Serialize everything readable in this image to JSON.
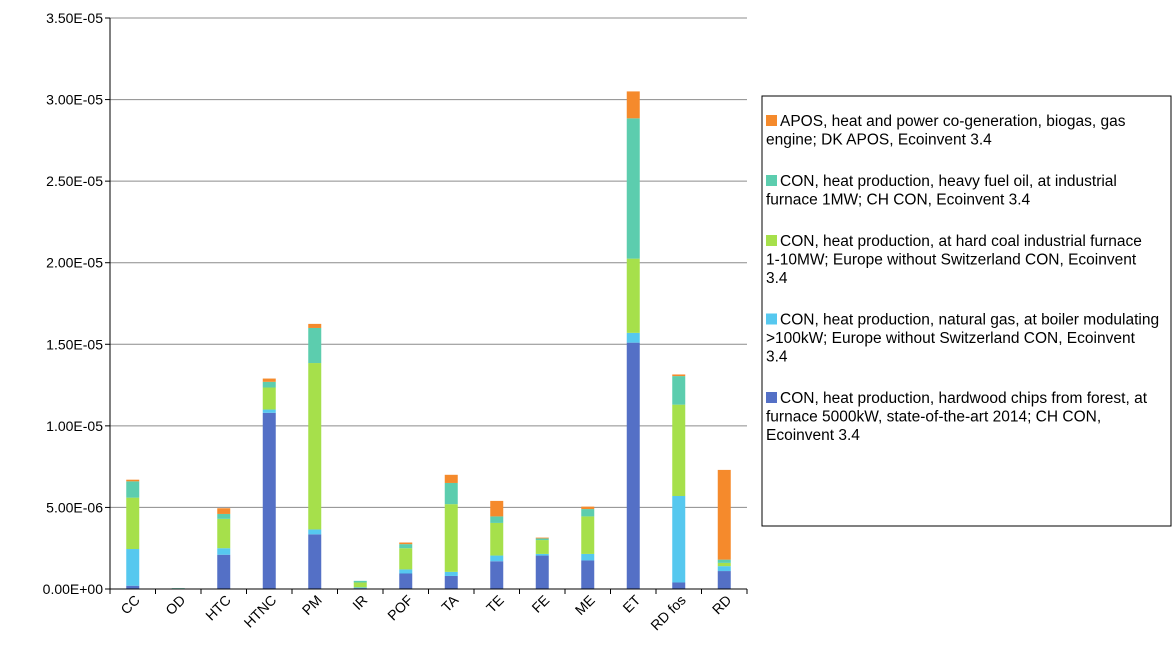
{
  "chart_data": {
    "type": "bar",
    "stacked": true,
    "categories": [
      "CC",
      "OD",
      "HTC",
      "HTNC",
      "PM",
      "IR",
      "POF",
      "TA",
      "TE",
      "FE",
      "ME",
      "ET",
      "RD fos",
      "RD"
    ],
    "ylim": [
      0,
      3.5e-05
    ],
    "yticks": [
      0,
      5e-06,
      1e-05,
      1.5e-05,
      2e-05,
      2.5e-05,
      3e-05,
      3.5e-05
    ],
    "ytick_labels": [
      "0.00E+00",
      "5.00E-06",
      "1.00E-05",
      "1.50E-05",
      "2.00E-05",
      "2.50E-05",
      "3.00E-05",
      "3.50E-05"
    ],
    "grid": true,
    "legend_position": "right",
    "series": [
      {
        "name": "CON, heat production, hardwood chips from forest, at furnace 5000kW, state-of-the-art 2014; CH CON, Ecoinvent 3.4",
        "color": "#5470c6",
        "values": [
          2e-07,
          0,
          2.1e-06,
          1.08e-05,
          3.35e-06,
          5e-08,
          9.5e-07,
          8e-07,
          1.7e-06,
          2.05e-06,
          1.75e-06,
          1.51e-05,
          4e-07,
          1.1e-06
        ]
      },
      {
        "name": "CON, heat production, natural gas, at boiler modulating >100kW; Europe without Switzerland CON, Ecoinvent 3.4",
        "color": "#56c8ef",
        "values": [
          2.25e-06,
          0,
          4e-07,
          2e-07,
          3e-07,
          5e-08,
          2.5e-07,
          2.5e-07,
          3.5e-07,
          1e-07,
          4e-07,
          6e-07,
          5.3e-06,
          3e-07
        ]
      },
      {
        "name": "CON, heat production, at hard coal industrial furnace 1-10MW; Europe without Switzerland CON, Ecoinvent 3.4",
        "color": "#a6e04b",
        "values": [
          3.15e-06,
          0,
          1.8e-06,
          1.35e-06,
          1.02e-05,
          3e-07,
          1.3e-06,
          4.15e-06,
          2e-06,
          8.5e-07,
          2.3e-06,
          4.55e-06,
          5.6e-06,
          2e-07
        ]
      },
      {
        "name": "CON, heat production, heavy fuel oil, at industrial furnace 1MW; CH CON, Ecoinvent 3.4",
        "color": "#5ccdae",
        "values": [
          1e-06,
          5e-08,
          3e-07,
          3.5e-07,
          2.15e-06,
          1e-07,
          2.5e-07,
          1.3e-06,
          4e-07,
          1e-07,
          4.5e-07,
          8.6e-06,
          1.75e-06,
          2e-07
        ]
      },
      {
        "name": "APOS, heat and power co-generation, biogas, gas engine; DK APOS, Ecoinvent 3.4",
        "color": "#f58a2c",
        "values": [
          1e-07,
          0,
          3.5e-07,
          2e-07,
          2.5e-07,
          0,
          1e-07,
          5e-07,
          9.5e-07,
          5e-08,
          1.5e-07,
          1.65e-06,
          1e-07,
          5.5e-06
        ]
      }
    ]
  }
}
